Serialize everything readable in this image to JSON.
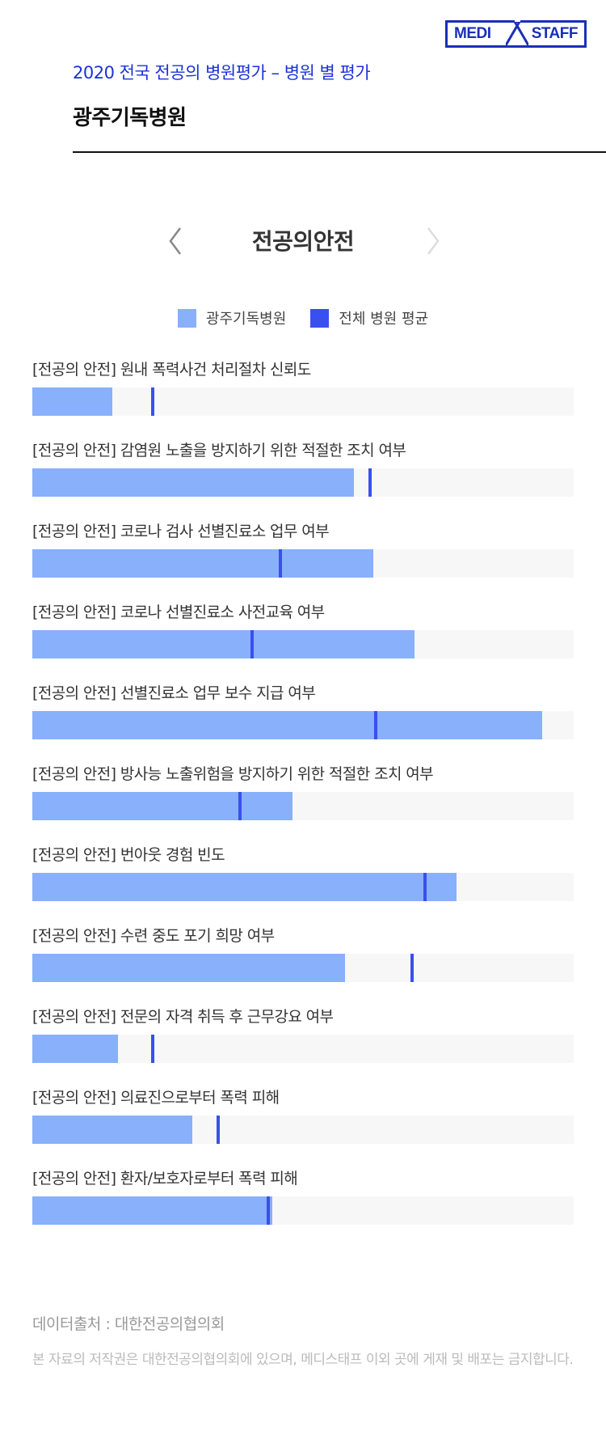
{
  "logo": {
    "left": "MEDI",
    "right": "STAFF",
    "color": "#1a2fb8"
  },
  "header": {
    "subtitle": "2020 전국 전공의 병원평가 – 병원 별 평가",
    "hospital": "광주기독병원"
  },
  "nav": {
    "category": "전공의안전",
    "prev_icon": "chevron-left-icon",
    "next_icon": "chevron-right-icon"
  },
  "colors": {
    "hospital": "#88b0fb",
    "average": "#3a4fef",
    "track": "#f7f7f7"
  },
  "chart_data": {
    "type": "bar",
    "orientation": "horizontal",
    "unit": "percent of bar track (estimated)",
    "xlim": [
      0,
      100
    ],
    "legend": [
      "광주기독병원",
      "전체 병원 평균"
    ],
    "categories": [
      "[전공의 안전] 원내 폭력사건 처리절차 신뢰도",
      "[전공의 안전] 감염원 노출을 방지하기 위한 적절한 조치 여부",
      "[전공의 안전] 코로나 검사 선별진료소 업무 여부",
      "[전공의 안전] 코로나 선별진료소 사전교육 여부",
      "[전공의 안전] 선별진료소 업무 보수 지급 여부",
      "[전공의 안전] 방사능 노출위험을 방지하기 위한 적절한 조치 여부",
      "[전공의 안전] 번아웃 경험 빈도",
      "[전공의 안전] 수련 중도 포기 희망 여부",
      "[전공의 안전] 전문의 자격 취득 후 근무강요 여부",
      "[전공의 안전] 의료진으로부터 폭력 피해",
      "[전공의 안전] 환자/보호자로부터 폭력 피해"
    ],
    "series": [
      {
        "name": "광주기독병원",
        "values": [
          14.8,
          59.4,
          63.0,
          70.6,
          94.2,
          48.0,
          78.3,
          57.8,
          15.8,
          29.5,
          44.3
        ]
      },
      {
        "name": "전체 병원 평균",
        "values": [
          22.3,
          62.4,
          45.8,
          40.6,
          63.4,
          38.3,
          72.6,
          70.2,
          22.3,
          34.4,
          43.6
        ]
      }
    ]
  },
  "footer": {
    "source": "데이터출처 : 대한전공의협의회",
    "notice": "본 자료의 저작권은 대한전공의협의회에 있으며, 메디스태프 이외 곳에 게재 및 배포는 금지합니다."
  }
}
